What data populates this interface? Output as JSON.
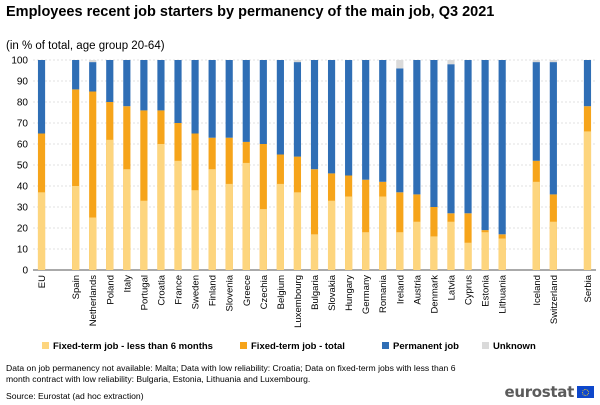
{
  "chart_data": {
    "type": "bar",
    "title": "Employees recent job starters by permanency of the main job, Q3 2021",
    "subtitle": "(in % of total, age group 20-64)",
    "ylim": [
      0,
      100
    ],
    "yticks": [
      0,
      10,
      20,
      30,
      40,
      50,
      60,
      70,
      80,
      90,
      100
    ],
    "grid": true,
    "legend_position": "bottom",
    "categories": [
      "EU",
      "Spain",
      "Netherlands",
      "Poland",
      "Italy",
      "Portugal",
      "Croatia",
      "France",
      "Sweden",
      "Finland",
      "Slovenia",
      "Greece",
      "Czechia",
      "Belgium",
      "Luxembourg",
      "Bulgaria",
      "Slovakia",
      "Hungary",
      "Germany",
      "Romania",
      "Ireland",
      "Austria",
      "Denmark",
      "Latvia",
      "Cyprus",
      "Estonia",
      "Lithuania",
      "Iceland",
      "Switzerland",
      "Serbia"
    ],
    "groups": [
      1,
      2,
      2,
      2,
      2,
      2,
      2,
      2,
      2,
      2,
      2,
      2,
      2,
      2,
      2,
      2,
      2,
      2,
      2,
      2,
      2,
      2,
      2,
      2,
      2,
      2,
      2,
      3,
      3,
      4
    ],
    "series": [
      {
        "name": "Fixed-term job - less than 6 months",
        "color": "#fdd57e",
        "values": [
          37,
          40,
          25,
          62,
          48,
          33,
          60,
          52,
          38,
          48,
          41,
          51,
          29,
          41,
          37,
          17,
          33,
          35,
          18,
          35,
          18,
          23,
          16,
          23,
          13,
          18,
          15,
          42,
          23,
          66
        ]
      },
      {
        "name": "Fixed-term job - total",
        "color": "#f6a41a",
        "values": [
          65,
          86,
          85,
          80,
          78,
          76,
          76,
          70,
          65,
          63,
          63,
          61,
          60,
          55,
          54,
          48,
          46,
          45,
          43,
          42,
          37,
          36,
          30,
          27,
          27,
          19,
          17,
          52,
          36,
          78
        ]
      },
      {
        "name": "Permanent job",
        "color": "#2f6eb5",
        "values": [
          35,
          14,
          14,
          20,
          22,
          24,
          24,
          30,
          35,
          37,
          37,
          39,
          40,
          45,
          45,
          52,
          54,
          55,
          57,
          58,
          59,
          64,
          70,
          71,
          73,
          81,
          83,
          47,
          63,
          22
        ]
      },
      {
        "name": "Unknown",
        "color": "#dadada",
        "values": [
          0,
          0,
          1,
          0,
          0,
          0,
          0,
          0,
          0,
          0,
          0,
          0,
          0,
          0,
          1,
          0,
          0,
          0,
          0,
          0,
          4,
          0,
          0,
          2,
          0,
          0,
          0,
          1,
          1,
          0
        ]
      }
    ]
  },
  "notes": "Data on job permanency not available: Malta; Data with low reliability: Croatia; Data on fixed-term jobs with less than 6 month contract with low reliability: Bulgaria, Estonia, Lithuania and Luxembourg.",
  "source": "Source: Eurostat (ad hoc extraction)",
  "logo": "eurostat"
}
